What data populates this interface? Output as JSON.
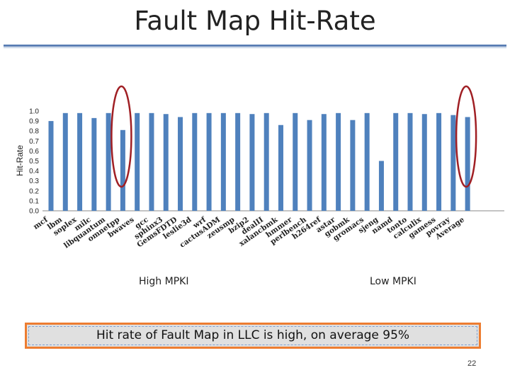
{
  "slide": {
    "title": "Fault Map Hit-Rate",
    "callout": "Hit rate of Fault Map in LLC is high, on average 95%",
    "page_number": "22",
    "group_labels": {
      "high": "High MPKI",
      "low": "Low MPKI"
    },
    "colors": {
      "bar": "#4f81bd",
      "highlight": "#a01f24",
      "callout_border": "#ed7d31",
      "rule": "#5b7fb5"
    }
  },
  "chart_data": {
    "type": "bar",
    "title": "",
    "xlabel": "",
    "ylabel": "Hit-Rate",
    "ylim": [
      0,
      1.0
    ],
    "yticks": [
      "0.0",
      "0.1",
      "0.2",
      "0.3",
      "0.4",
      "0.5",
      "0.6",
      "0.7",
      "0.8",
      "0.9",
      "1.0"
    ],
    "grid": false,
    "categories": [
      "mcf",
      "lbm",
      "soplex",
      "milc",
      "libquantum",
      "omnetpp",
      "bwaves",
      "gcc",
      "sphinx3",
      "GemsFDTD",
      "leslie3d",
      "wrf",
      "cactusADM",
      "zeusmp",
      "bzip2",
      "dealII",
      "xalancbmk",
      "hmmer",
      "perlbench",
      "h264ref",
      "astar",
      "gobmk",
      "gromacs",
      "sjeng",
      "namd",
      "tonto",
      "calculix",
      "gamess",
      "povray",
      "Average"
    ],
    "values": [
      0.9,
      0.98,
      0.98,
      0.93,
      0.98,
      0.81,
      0.98,
      0.98,
      0.97,
      0.94,
      0.98,
      0.98,
      0.98,
      0.98,
      0.97,
      0.98,
      0.86,
      0.98,
      0.91,
      0.97,
      0.98,
      0.91,
      0.98,
      0.5,
      0.98,
      0.98,
      0.97,
      0.98,
      0.96,
      0.94
    ],
    "highlighted": [
      "omnetpp",
      "Average"
    ]
  }
}
